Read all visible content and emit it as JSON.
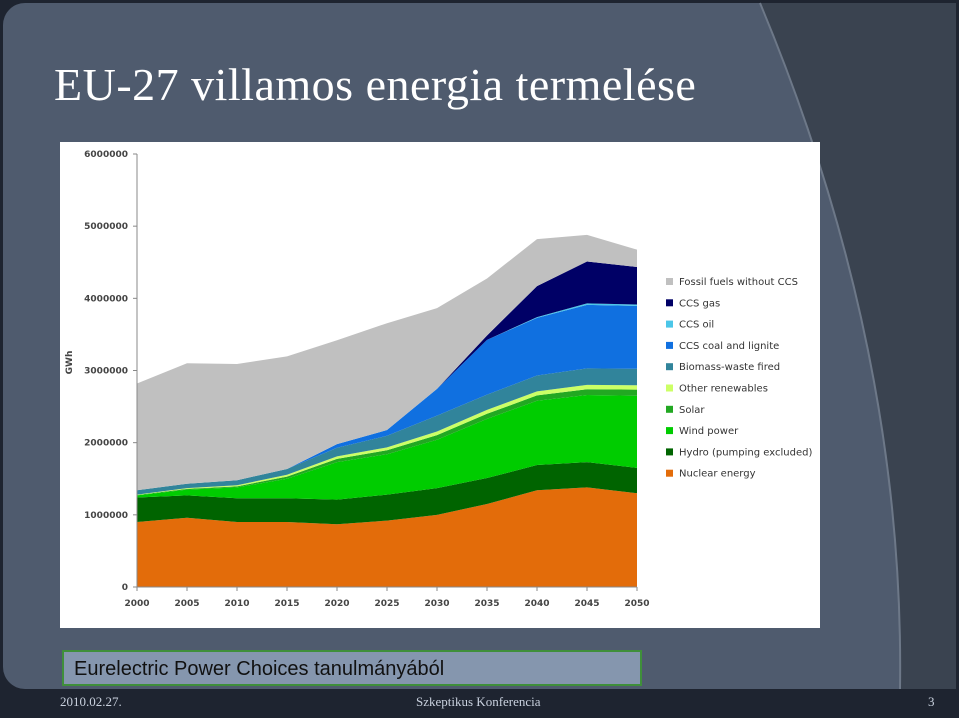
{
  "slide": {
    "title": "EU-27 villamos energia termelése",
    "caption": "Eurelectric Power Choices tanulmányából",
    "footer_date": "2010.02.27.",
    "footer_event": "Szkeptikus Konferencia",
    "page_number": "3",
    "colors": {
      "background": "#4f5b6e",
      "caption_bg": "#8596ae",
      "caption_border": "#3f8f3a"
    }
  },
  "chart_data": {
    "type": "area",
    "stacked": true,
    "title": "",
    "xlabel": "",
    "ylabel": "GWh",
    "x": [
      2000,
      2005,
      2010,
      2015,
      2020,
      2025,
      2030,
      2035,
      2040,
      2045,
      2050
    ],
    "x_tick_labels": [
      "2000",
      "2005",
      "2010",
      "2015",
      "2020",
      "2025",
      "2030",
      "2035",
      "2040",
      "2045",
      "2050"
    ],
    "ylim": [
      0,
      6000000
    ],
    "y_ticks": [
      0,
      1000000,
      2000000,
      3000000,
      4000000,
      5000000,
      6000000
    ],
    "y_tick_labels": [
      "0",
      "1000000",
      "2000000",
      "3000000",
      "4000000",
      "5000000",
      "6000000"
    ],
    "grid": false,
    "legend_position": "right",
    "series": [
      {
        "name": "Nuclear energy",
        "color": "#e36c0a",
        "values": [
          900000,
          960000,
          900000,
          900000,
          870000,
          920000,
          1000000,
          1150000,
          1340000,
          1380000,
          1300000
        ]
      },
      {
        "name": "Hydro (pumping excluded)",
        "color": "#006400",
        "values": [
          340000,
          310000,
          330000,
          330000,
          340000,
          360000,
          370000,
          360000,
          350000,
          350000,
          350000
        ]
      },
      {
        "name": "Wind power",
        "color": "#00cc00",
        "values": [
          30000,
          80000,
          150000,
          270000,
          520000,
          560000,
          670000,
          820000,
          890000,
          930000,
          1000000
        ]
      },
      {
        "name": "Solar",
        "color": "#22a822",
        "values": [
          5000,
          10000,
          15000,
          30000,
          45000,
          55000,
          65000,
          70000,
          75000,
          80000,
          85000
        ]
      },
      {
        "name": "Other renewables",
        "color": "#ccff66",
        "values": [
          5000,
          10000,
          15000,
          25000,
          35000,
          40000,
          50000,
          55000,
          55000,
          60000,
          60000
        ]
      },
      {
        "name": "Biomass-waste fired",
        "color": "#31849b",
        "values": [
          60000,
          60000,
          70000,
          80000,
          120000,
          160000,
          220000,
          210000,
          220000,
          230000,
          230000
        ]
      },
      {
        "name": "CCS coal and lignite",
        "color": "#1070e0",
        "values": [
          0,
          0,
          0,
          0,
          50000,
          80000,
          370000,
          760000,
          800000,
          880000,
          870000
        ]
      },
      {
        "name": "CCS oil",
        "color": "#4bc6e8",
        "values": [
          0,
          0,
          0,
          0,
          0,
          0,
          0,
          0,
          10000,
          20000,
          20000
        ]
      },
      {
        "name": "CCS gas",
        "color": "#000066",
        "values": [
          0,
          0,
          0,
          0,
          0,
          0,
          0,
          60000,
          430000,
          580000,
          520000
        ]
      },
      {
        "name": "Fossil fuels without CCS",
        "color": "#c0c0c0",
        "values": [
          1480000,
          1670000,
          1610000,
          1560000,
          1440000,
          1480000,
          1120000,
          790000,
          650000,
          370000,
          240000
        ]
      }
    ]
  }
}
